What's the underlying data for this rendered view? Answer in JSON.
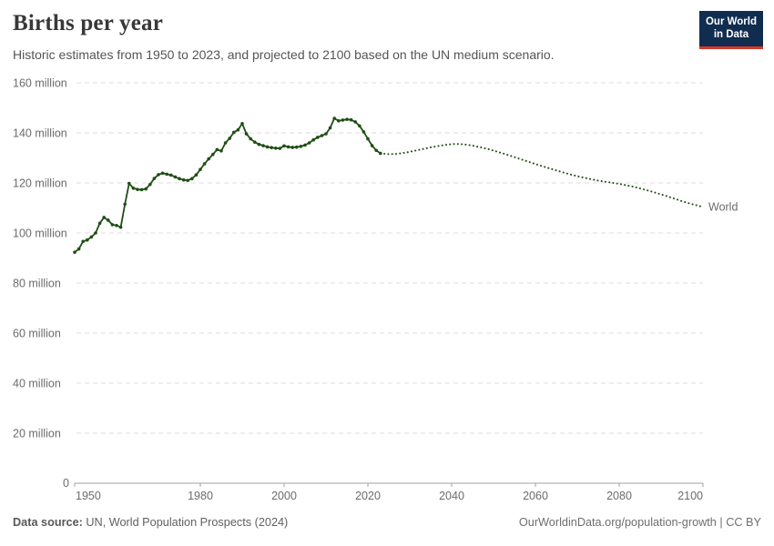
{
  "header": {
    "title": "Births per year",
    "subtitle": "Historic estimates from 1950 to 2023, and projected to 2100 based on the UN medium scenario.",
    "logo_line1": "Our World",
    "logo_line2": "in Data"
  },
  "footer": {
    "source_label": "Data source:",
    "source_text": " UN, World Population Prospects (2024)",
    "link_text": "OurWorldinData.org/population-growth | CC BY"
  },
  "colors": {
    "series_green": "#1f4e14",
    "grid": "#dedede",
    "axis": "#a1a1a1",
    "tick_text": "#6b6b6b",
    "logo_navy": "#102d50",
    "logo_red": "#d8352b"
  },
  "chart_data": {
    "type": "line",
    "title": "Births per year",
    "xlabel": "",
    "ylabel": "",
    "xlim": [
      1950,
      2100
    ],
    "ylim": [
      0,
      160
    ],
    "grid": "horizontal-dashed",
    "legend_position": "end-of-line-label",
    "series_label": "World",
    "yticks": [
      {
        "value": 0,
        "label": "0"
      },
      {
        "value": 20,
        "label": "20 million"
      },
      {
        "value": 40,
        "label": "40 million"
      },
      {
        "value": 60,
        "label": "60 million"
      },
      {
        "value": 80,
        "label": "80 million"
      },
      {
        "value": 100,
        "label": "100 million"
      },
      {
        "value": 120,
        "label": "120 million"
      },
      {
        "value": 140,
        "label": "140 million"
      },
      {
        "value": 160,
        "label": "160 million"
      }
    ],
    "xticks": [
      1950,
      1980,
      2000,
      2020,
      2040,
      2060,
      2080,
      2100
    ],
    "series": [
      {
        "name": "World (historic estimates)",
        "style": "solid-with-markers",
        "x": [
          1950,
          1951,
          1952,
          1953,
          1954,
          1955,
          1956,
          1957,
          1958,
          1959,
          1960,
          1961,
          1962,
          1963,
          1964,
          1965,
          1966,
          1967,
          1968,
          1969,
          1970,
          1971,
          1972,
          1973,
          1974,
          1975,
          1976,
          1977,
          1978,
          1979,
          1980,
          1981,
          1982,
          1983,
          1984,
          1985,
          1986,
          1987,
          1988,
          1989,
          1990,
          1991,
          1992,
          1993,
          1994,
          1995,
          1996,
          1997,
          1998,
          1999,
          2000,
          2001,
          2002,
          2003,
          2004,
          2005,
          2006,
          2007,
          2008,
          2009,
          2010,
          2011,
          2012,
          2013,
          2014,
          2015,
          2016,
          2017,
          2018,
          2019,
          2020,
          2021,
          2022,
          2023
        ],
        "values": [
          92.3,
          93.6,
          96.6,
          97.2,
          98.4,
          100.0,
          103.9,
          106.2,
          105.1,
          103.3,
          103.0,
          102.3,
          111.5,
          119.8,
          117.9,
          117.4,
          117.3,
          117.6,
          119.4,
          121.8,
          123.3,
          123.9,
          123.5,
          123.1,
          122.4,
          121.7,
          121.2,
          121.0,
          121.7,
          123.2,
          125.4,
          127.6,
          129.6,
          131.4,
          133.3,
          132.8,
          136.0,
          137.8,
          140.2,
          141.2,
          143.7,
          139.6,
          137.6,
          136.3,
          135.4,
          134.9,
          134.4,
          134.1,
          133.9,
          133.8,
          134.8,
          134.4,
          134.2,
          134.3,
          134.6,
          135.1,
          136.0,
          137.2,
          138.2,
          138.9,
          139.6,
          142.0,
          145.8,
          144.8,
          145.1,
          145.4,
          145.2,
          144.4,
          142.8,
          140.4,
          137.6,
          134.9,
          133.0,
          131.8
        ]
      },
      {
        "name": "World (UN medium scenario projection)",
        "style": "dotted",
        "x": [
          2023,
          2025,
          2027,
          2029,
          2031,
          2033,
          2035,
          2037,
          2039,
          2041,
          2043,
          2045,
          2047,
          2049,
          2051,
          2053,
          2055,
          2057,
          2059,
          2061,
          2063,
          2065,
          2067,
          2069,
          2071,
          2073,
          2075,
          2077,
          2079,
          2081,
          2083,
          2085,
          2087,
          2089,
          2091,
          2093,
          2095,
          2097,
          2100
        ],
        "values": [
          131.8,
          131.5,
          131.6,
          132.1,
          132.8,
          133.5,
          134.2,
          134.8,
          135.3,
          135.6,
          135.4,
          134.9,
          134.2,
          133.4,
          132.4,
          131.4,
          130.3,
          129.2,
          128.1,
          127.0,
          126.0,
          125.0,
          124.0,
          123.1,
          122.3,
          121.6,
          120.9,
          120.4,
          119.9,
          119.3,
          118.6,
          117.8,
          116.9,
          115.9,
          114.9,
          113.8,
          112.7,
          111.7,
          110.4
        ]
      }
    ]
  }
}
